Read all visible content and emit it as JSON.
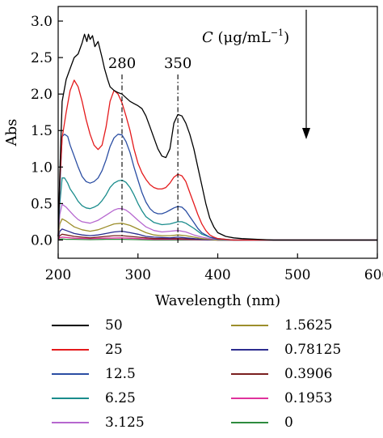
{
  "chart_data": {
    "type": "line",
    "xlabel": "Wavelength (nm)",
    "ylabel": "Abs",
    "xlim": [
      200,
      600
    ],
    "ylim": [
      -0.25,
      3.2
    ],
    "xticks": [
      "200",
      "300",
      "400",
      "500",
      "600"
    ],
    "xtick_values": [
      200,
      300,
      400,
      500,
      600
    ],
    "yticks": [
      "0.0",
      "0.5",
      "1.0",
      "1.5",
      "2.0",
      "2.5",
      "3.0"
    ],
    "ytick_values": [
      0.0,
      0.5,
      1.0,
      1.5,
      2.0,
      2.5,
      3.0
    ],
    "annotation_label": "C (μg/mL⁻¹)",
    "annotation_c": "C",
    "annotation_units": " (μg/mL",
    "annotation_exp": "−1",
    "annotation_close": ")",
    "peak_labels": [
      {
        "text": "280",
        "x": 280
      },
      {
        "text": "350",
        "x": 350
      }
    ],
    "series": [
      {
        "name": "50",
        "color": "#000000",
        "x": [
          200,
          202,
          205,
          210,
          215,
          220,
          225,
          230,
          233,
          236,
          238,
          240,
          243,
          246,
          250,
          255,
          258,
          262,
          265,
          270,
          275,
          280,
          285,
          290,
          295,
          300,
          305,
          310,
          315,
          320,
          325,
          330,
          335,
          340,
          345,
          350,
          355,
          360,
          365,
          370,
          375,
          380,
          385,
          390,
          395,
          400,
          410,
          420,
          430,
          450,
          470,
          500,
          550,
          600
        ],
        "y": [
          0.05,
          0.9,
          1.9,
          2.2,
          2.35,
          2.5,
          2.55,
          2.7,
          2.82,
          2.72,
          2.82,
          2.75,
          2.8,
          2.65,
          2.72,
          2.5,
          2.35,
          2.2,
          2.1,
          2.05,
          2.02,
          2.0,
          1.95,
          1.9,
          1.87,
          1.84,
          1.8,
          1.7,
          1.55,
          1.4,
          1.25,
          1.15,
          1.13,
          1.25,
          1.6,
          1.72,
          1.7,
          1.6,
          1.45,
          1.25,
          1.0,
          0.75,
          0.5,
          0.3,
          0.18,
          0.1,
          0.05,
          0.03,
          0.02,
          0.01,
          0.0,
          0.0,
          0.0,
          0.0
        ]
      },
      {
        "name": "25",
        "color": "#e41a1c",
        "x": [
          200,
          202,
          205,
          210,
          215,
          220,
          225,
          230,
          235,
          240,
          245,
          250,
          255,
          260,
          265,
          270,
          275,
          280,
          285,
          290,
          295,
          300,
          305,
          310,
          315,
          320,
          325,
          330,
          335,
          340,
          345,
          350,
          355,
          360,
          365,
          370,
          375,
          380,
          385,
          390,
          395,
          400,
          410,
          420,
          450,
          500,
          550,
          600
        ],
        "y": [
          0.05,
          0.8,
          1.4,
          1.75,
          2.05,
          2.19,
          2.1,
          1.9,
          1.65,
          1.45,
          1.3,
          1.24,
          1.3,
          1.55,
          1.9,
          2.05,
          2.0,
          1.88,
          1.7,
          1.5,
          1.25,
          1.05,
          0.92,
          0.83,
          0.76,
          0.72,
          0.7,
          0.7,
          0.72,
          0.78,
          0.86,
          0.9,
          0.88,
          0.8,
          0.65,
          0.5,
          0.35,
          0.22,
          0.13,
          0.07,
          0.04,
          0.02,
          0.01,
          0.0,
          0.0,
          0.0,
          0.0,
          0.0
        ]
      },
      {
        "name": "12.5",
        "color": "#2b4ea3",
        "x": [
          200,
          202,
          205,
          208,
          212,
          215,
          220,
          225,
          230,
          235,
          240,
          245,
          250,
          255,
          260,
          265,
          270,
          275,
          280,
          285,
          290,
          295,
          300,
          305,
          310,
          315,
          320,
          325,
          330,
          335,
          340,
          345,
          350,
          355,
          360,
          365,
          370,
          375,
          380,
          390,
          400,
          420,
          450,
          500,
          600
        ],
        "y": [
          0.05,
          0.7,
          1.42,
          1.45,
          1.42,
          1.3,
          1.15,
          1.0,
          0.87,
          0.8,
          0.78,
          0.8,
          0.85,
          0.95,
          1.1,
          1.28,
          1.4,
          1.45,
          1.44,
          1.35,
          1.2,
          1.0,
          0.82,
          0.65,
          0.52,
          0.43,
          0.38,
          0.36,
          0.36,
          0.38,
          0.41,
          0.44,
          0.46,
          0.45,
          0.4,
          0.32,
          0.24,
          0.16,
          0.1,
          0.04,
          0.01,
          0.0,
          0.0,
          0.0,
          0.0
        ]
      },
      {
        "name": "6.25",
        "color": "#1a8c8c",
        "x": [
          200,
          202,
          205,
          208,
          212,
          215,
          220,
          225,
          230,
          235,
          240,
          245,
          250,
          255,
          260,
          265,
          270,
          275,
          280,
          285,
          290,
          295,
          300,
          305,
          310,
          320,
          330,
          340,
          350,
          355,
          360,
          370,
          380,
          390,
          400,
          420,
          450,
          500,
          600
        ],
        "y": [
          0.05,
          0.5,
          0.85,
          0.85,
          0.78,
          0.7,
          0.62,
          0.53,
          0.47,
          0.44,
          0.43,
          0.45,
          0.48,
          0.54,
          0.62,
          0.72,
          0.78,
          0.81,
          0.82,
          0.79,
          0.72,
          0.62,
          0.5,
          0.4,
          0.32,
          0.24,
          0.21,
          0.22,
          0.25,
          0.25,
          0.23,
          0.16,
          0.08,
          0.04,
          0.02,
          0.0,
          0.0,
          0.0,
          0.0
        ]
      },
      {
        "name": "3.125",
        "color": "#b667cf",
        "x": [
          200,
          202,
          205,
          210,
          215,
          220,
          225,
          230,
          240,
          250,
          260,
          270,
          275,
          280,
          285,
          290,
          300,
          310,
          320,
          330,
          340,
          350,
          360,
          370,
          380,
          390,
          400,
          420,
          450,
          500,
          600
        ],
        "y": [
          0.05,
          0.35,
          0.49,
          0.45,
          0.39,
          0.33,
          0.28,
          0.25,
          0.23,
          0.27,
          0.34,
          0.41,
          0.43,
          0.43,
          0.41,
          0.37,
          0.27,
          0.18,
          0.13,
          0.11,
          0.12,
          0.13,
          0.11,
          0.07,
          0.04,
          0.02,
          0.01,
          0.0,
          0.0,
          0.0,
          0.0
        ]
      },
      {
        "name": "1.5625",
        "color": "#9c8e2b",
        "x": [
          200,
          202,
          205,
          210,
          215,
          220,
          230,
          240,
          250,
          260,
          270,
          280,
          290,
          300,
          310,
          320,
          330,
          340,
          350,
          360,
          370,
          380,
          400,
          450,
          500,
          600
        ],
        "y": [
          0.03,
          0.22,
          0.29,
          0.26,
          0.22,
          0.18,
          0.14,
          0.12,
          0.14,
          0.18,
          0.22,
          0.23,
          0.2,
          0.15,
          0.1,
          0.07,
          0.06,
          0.06,
          0.07,
          0.06,
          0.04,
          0.02,
          0.0,
          0.0,
          0.0,
          0.0
        ]
      },
      {
        "name": "0.78125",
        "color": "#2c2c8f",
        "x": [
          200,
          202,
          205,
          210,
          220,
          230,
          240,
          250,
          260,
          270,
          280,
          290,
          300,
          310,
          320,
          340,
          350,
          360,
          380,
          400,
          450,
          500,
          600
        ],
        "y": [
          0.02,
          0.12,
          0.15,
          0.13,
          0.09,
          0.07,
          0.06,
          0.07,
          0.09,
          0.11,
          0.12,
          0.1,
          0.08,
          0.05,
          0.04,
          0.03,
          0.04,
          0.03,
          0.01,
          0.0,
          0.0,
          0.0,
          0.0
        ]
      },
      {
        "name": "0.3906",
        "color": "#7a1f1f",
        "x": [
          200,
          202,
          205,
          210,
          220,
          230,
          240,
          250,
          260,
          270,
          280,
          290,
          300,
          320,
          350,
          380,
          400,
          450,
          500,
          600
        ],
        "y": [
          0.01,
          0.06,
          0.08,
          0.07,
          0.05,
          0.04,
          0.03,
          0.04,
          0.05,
          0.06,
          0.06,
          0.05,
          0.04,
          0.02,
          0.02,
          0.01,
          0.0,
          0.0,
          0.0,
          0.0
        ]
      },
      {
        "name": "0.1953",
        "color": "#e0329c",
        "x": [
          200,
          202,
          205,
          210,
          220,
          240,
          260,
          280,
          300,
          320,
          350,
          400,
          450,
          500,
          600
        ],
        "y": [
          0.01,
          0.03,
          0.04,
          0.035,
          0.025,
          0.02,
          0.025,
          0.03,
          0.02,
          0.01,
          0.01,
          0.0,
          0.0,
          0.0,
          0.0
        ]
      },
      {
        "name": "0",
        "color": "#2e8b3e",
        "x": [
          200,
          202,
          205,
          210,
          220,
          240,
          260,
          280,
          300,
          320,
          350,
          400,
          450,
          500,
          600
        ],
        "y": [
          0.0,
          0.01,
          0.015,
          0.01,
          0.01,
          0.005,
          0.01,
          0.01,
          0.005,
          0.0,
          0.0,
          0.0,
          0.0,
          0.0,
          0.0
        ]
      }
    ]
  }
}
